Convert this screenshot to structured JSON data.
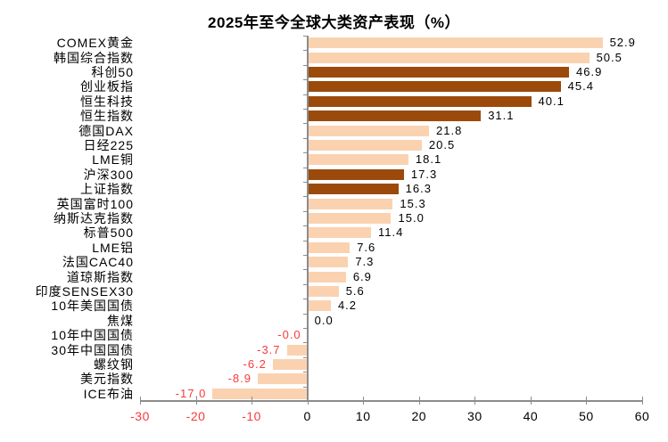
{
  "chart_data": {
    "type": "bar",
    "orientation": "horizontal",
    "title": "2025年至今全球大类资产表现（%）",
    "categories": [
      "COMEX黄金",
      "韩国综合指数",
      "科创50",
      "创业板指",
      "恒生科技",
      "恒生指数",
      "德国DAX",
      "日经225",
      "LME铜",
      "沪深300",
      "上证指数",
      "英国富时100",
      "纳斯达克指数",
      "标普500",
      "LME铝",
      "法国CAC40",
      "道琼斯指数",
      "印度SENSEX30",
      "10年美国国债",
      "焦煤",
      "10年中国国债",
      "30年中国国债",
      "螺纹钢",
      "美元指数",
      "ICE布油"
    ],
    "values": [
      52.9,
      50.5,
      46.9,
      45.4,
      40.1,
      31.1,
      21.8,
      20.5,
      18.1,
      17.3,
      16.3,
      15.3,
      15.0,
      11.4,
      7.6,
      7.3,
      6.9,
      5.6,
      4.2,
      0.0,
      -0.0,
      -3.7,
      -6.2,
      -8.9,
      -17.0
    ],
    "value_labels": [
      "52.9",
      "50.5",
      "46.9",
      "45.4",
      "40.1",
      "31.1",
      "21.8",
      "20.5",
      "18.1",
      "17.3",
      "16.3",
      "15.3",
      "15.0",
      "11.4",
      "7.6",
      "7.3",
      "6.9",
      "5.6",
      "4.2",
      "0.0",
      "-0.0",
      "-3.7",
      "-6.2",
      "-8.9",
      "-17.0"
    ],
    "bar_styles": [
      "light",
      "light",
      "dark",
      "dark",
      "dark",
      "dark",
      "light",
      "light",
      "light",
      "dark",
      "dark",
      "light",
      "light",
      "light",
      "light",
      "light",
      "light",
      "light",
      "light",
      "light",
      "light",
      "light",
      "light",
      "light",
      "light"
    ],
    "xlim": [
      -30,
      60
    ],
    "x_ticks": [
      -30,
      -20,
      -10,
      0,
      10,
      20,
      30,
      40,
      50,
      60
    ],
    "xlabel": "",
    "ylabel": "",
    "grid": "off",
    "legend": "none",
    "colors": {
      "bar_light": "#fad2b0",
      "bar_dark": "#9b4a0c",
      "negative_text": "#fa3a3a",
      "positive_text": "#000000",
      "axis": "#8c8c8c",
      "background": "#ffffff"
    }
  }
}
